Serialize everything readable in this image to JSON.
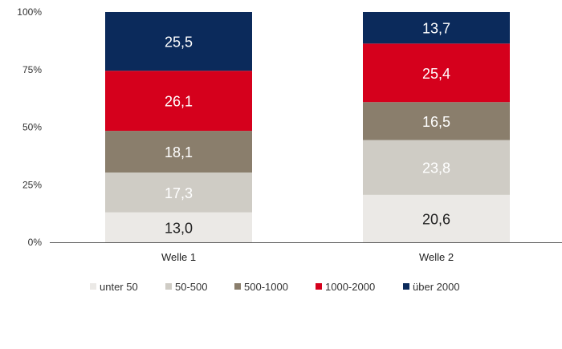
{
  "chart_data": {
    "type": "bar",
    "stacked": true,
    "percent_stacked": true,
    "categories": [
      "Welle 1",
      "Welle 2"
    ],
    "series": [
      {
        "name": "unter 50",
        "values": [
          13.0,
          20.6
        ],
        "labels": [
          "13,0",
          "20,6"
        ],
        "color": "#ebe9e6",
        "label_color": "#222222"
      },
      {
        "name": "50-500",
        "values": [
          17.3,
          23.8
        ],
        "labels": [
          "17,3",
          "23,8"
        ],
        "color": "#cfccc5",
        "label_color": "#ffffff"
      },
      {
        "name": "500-1000",
        "values": [
          18.1,
          16.5
        ],
        "labels": [
          "18,1",
          "16,5"
        ],
        "color": "#8a7e6c",
        "label_color": "#ffffff"
      },
      {
        "name": "1000-2000",
        "values": [
          26.1,
          25.4
        ],
        "labels": [
          "26,1",
          "25,4"
        ],
        "color": "#d5001c",
        "label_color": "#ffffff"
      },
      {
        "name": "über 2000",
        "values": [
          25.5,
          13.7
        ],
        "labels": [
          "25,5",
          "13,7"
        ],
        "color": "#0b2a5b",
        "label_color": "#ffffff"
      }
    ],
    "yticks": [
      0,
      25,
      50,
      75,
      100
    ],
    "ytick_labels": [
      "0%",
      "25%",
      "50%",
      "75%",
      "100%"
    ],
    "ylim": [
      0,
      100
    ],
    "grid": false,
    "legend_position": "bottom"
  }
}
